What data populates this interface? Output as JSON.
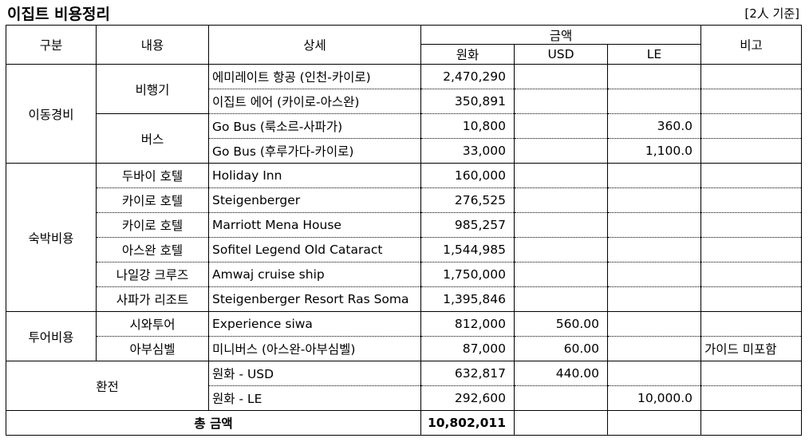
{
  "title": "이집트 비용정리",
  "basis": "[2人 기준]",
  "headers": {
    "category": "구분",
    "content": "내용",
    "detail": "상세",
    "amount": "금액",
    "krw": "원화",
    "usd": "USD",
    "le": "LE",
    "note": "비고"
  },
  "groups": {
    "travel": "이동경비",
    "lodging": "숙박비용",
    "tour": "투어비용",
    "exchange": "환전"
  },
  "rows": [
    {
      "content": "비행기",
      "detail": "에미레이트 항공 (인천-카이로)",
      "krw": "2,470,290",
      "usd": "",
      "le": "",
      "note": ""
    },
    {
      "content": "",
      "detail": "이집트 에어 (카이로-아스완)",
      "krw": "350,891",
      "usd": "",
      "le": "",
      "note": ""
    },
    {
      "content": "버스",
      "detail": "Go Bus (룩소르-사파가)",
      "krw": "10,800",
      "usd": "",
      "le": "360.0",
      "note": ""
    },
    {
      "content": "",
      "detail": "Go Bus (후루가다-카이로)",
      "krw": "33,000",
      "usd": "",
      "le": "1,100.0",
      "note": ""
    },
    {
      "content": "두바이 호텔",
      "detail": "Holiday Inn",
      "krw": "160,000",
      "usd": "",
      "le": "",
      "note": ""
    },
    {
      "content": "카이로 호텔",
      "detail": "Steigenberger",
      "krw": "276,525",
      "usd": "",
      "le": "",
      "note": ""
    },
    {
      "content": "카이로 호텔",
      "detail": "Marriott Mena House",
      "krw": "985,257",
      "usd": "",
      "le": "",
      "note": ""
    },
    {
      "content": "아스완 호텔",
      "detail": "Sofitel Legend Old Cataract",
      "krw": "1,544,985",
      "usd": "",
      "le": "",
      "note": ""
    },
    {
      "content": "나일강 크루즈",
      "detail": "Amwaj cruise ship",
      "krw": "1,750,000",
      "usd": "",
      "le": "",
      "note": ""
    },
    {
      "content": "사파가 리조트",
      "detail": "Steigenberger Resort Ras Soma",
      "krw": "1,395,846",
      "usd": "",
      "le": "",
      "note": ""
    },
    {
      "content": "시와투어",
      "detail": "Experience siwa",
      "krw": "812,000",
      "usd": "560.00",
      "le": "",
      "note": ""
    },
    {
      "content": "아부심벨",
      "detail": "미니버스 (아스완-아부심벨)",
      "krw": "87,000",
      "usd": "60.00",
      "le": "",
      "note": "가이드 미포함"
    },
    {
      "content": "",
      "detail": "원화 - USD",
      "krw": "632,817",
      "usd": "440.00",
      "le": "",
      "note": ""
    },
    {
      "content": "",
      "detail": "원화 - LE",
      "krw": "292,600",
      "usd": "",
      "le": "10,000.0",
      "note": ""
    }
  ],
  "total": {
    "label": "총 금액",
    "krw": "10,802,011"
  }
}
